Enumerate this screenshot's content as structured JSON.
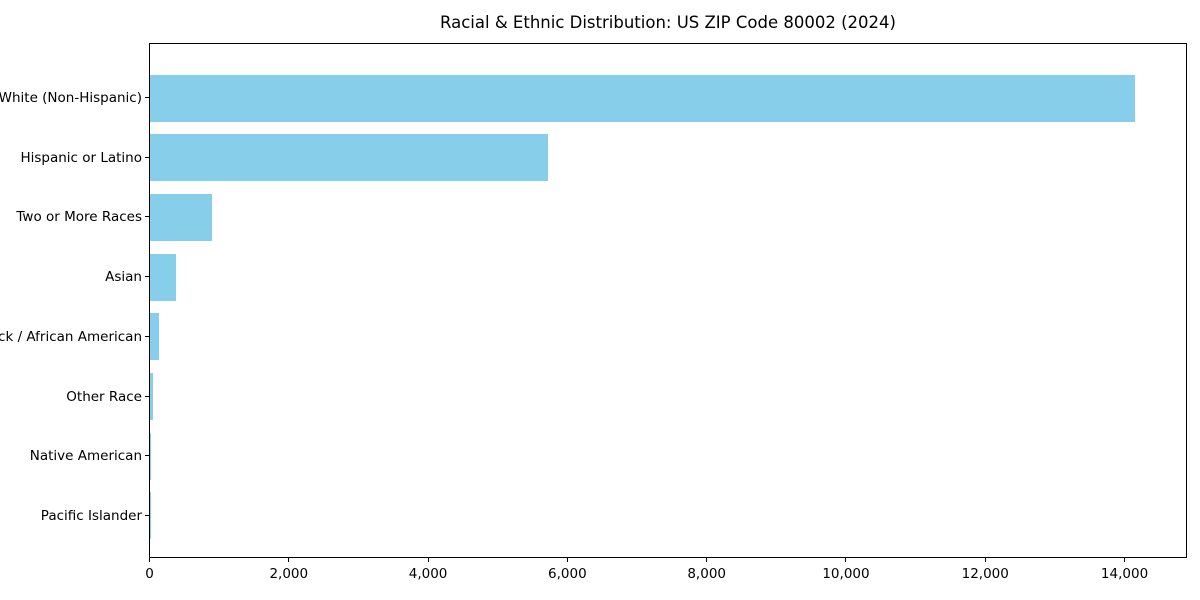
{
  "chart_data": {
    "type": "bar",
    "orientation": "horizontal",
    "title": "Racial & Ethnic Distribution: US ZIP Code 80002 (2024)",
    "categories": [
      "White (Non-Hispanic)",
      "Hispanic or Latino",
      "Two or More Races",
      "Asian",
      "Black / African American",
      "Other Race",
      "Native American",
      "Pacific Islander"
    ],
    "values": [
      14140,
      5720,
      890,
      375,
      130,
      45,
      12,
      3
    ],
    "bar_color": "#87CEEB",
    "xlabel": "",
    "ylabel": "",
    "xlim": [
      0,
      14875
    ],
    "x_ticks": [
      0,
      2000,
      4000,
      6000,
      8000,
      10000,
      12000,
      14000
    ],
    "x_tick_labels": [
      "0",
      "2,000",
      "4,000",
      "6,000",
      "8,000",
      "10,000",
      "12,000",
      "14,000"
    ],
    "grid": false,
    "legend_position": "none"
  }
}
